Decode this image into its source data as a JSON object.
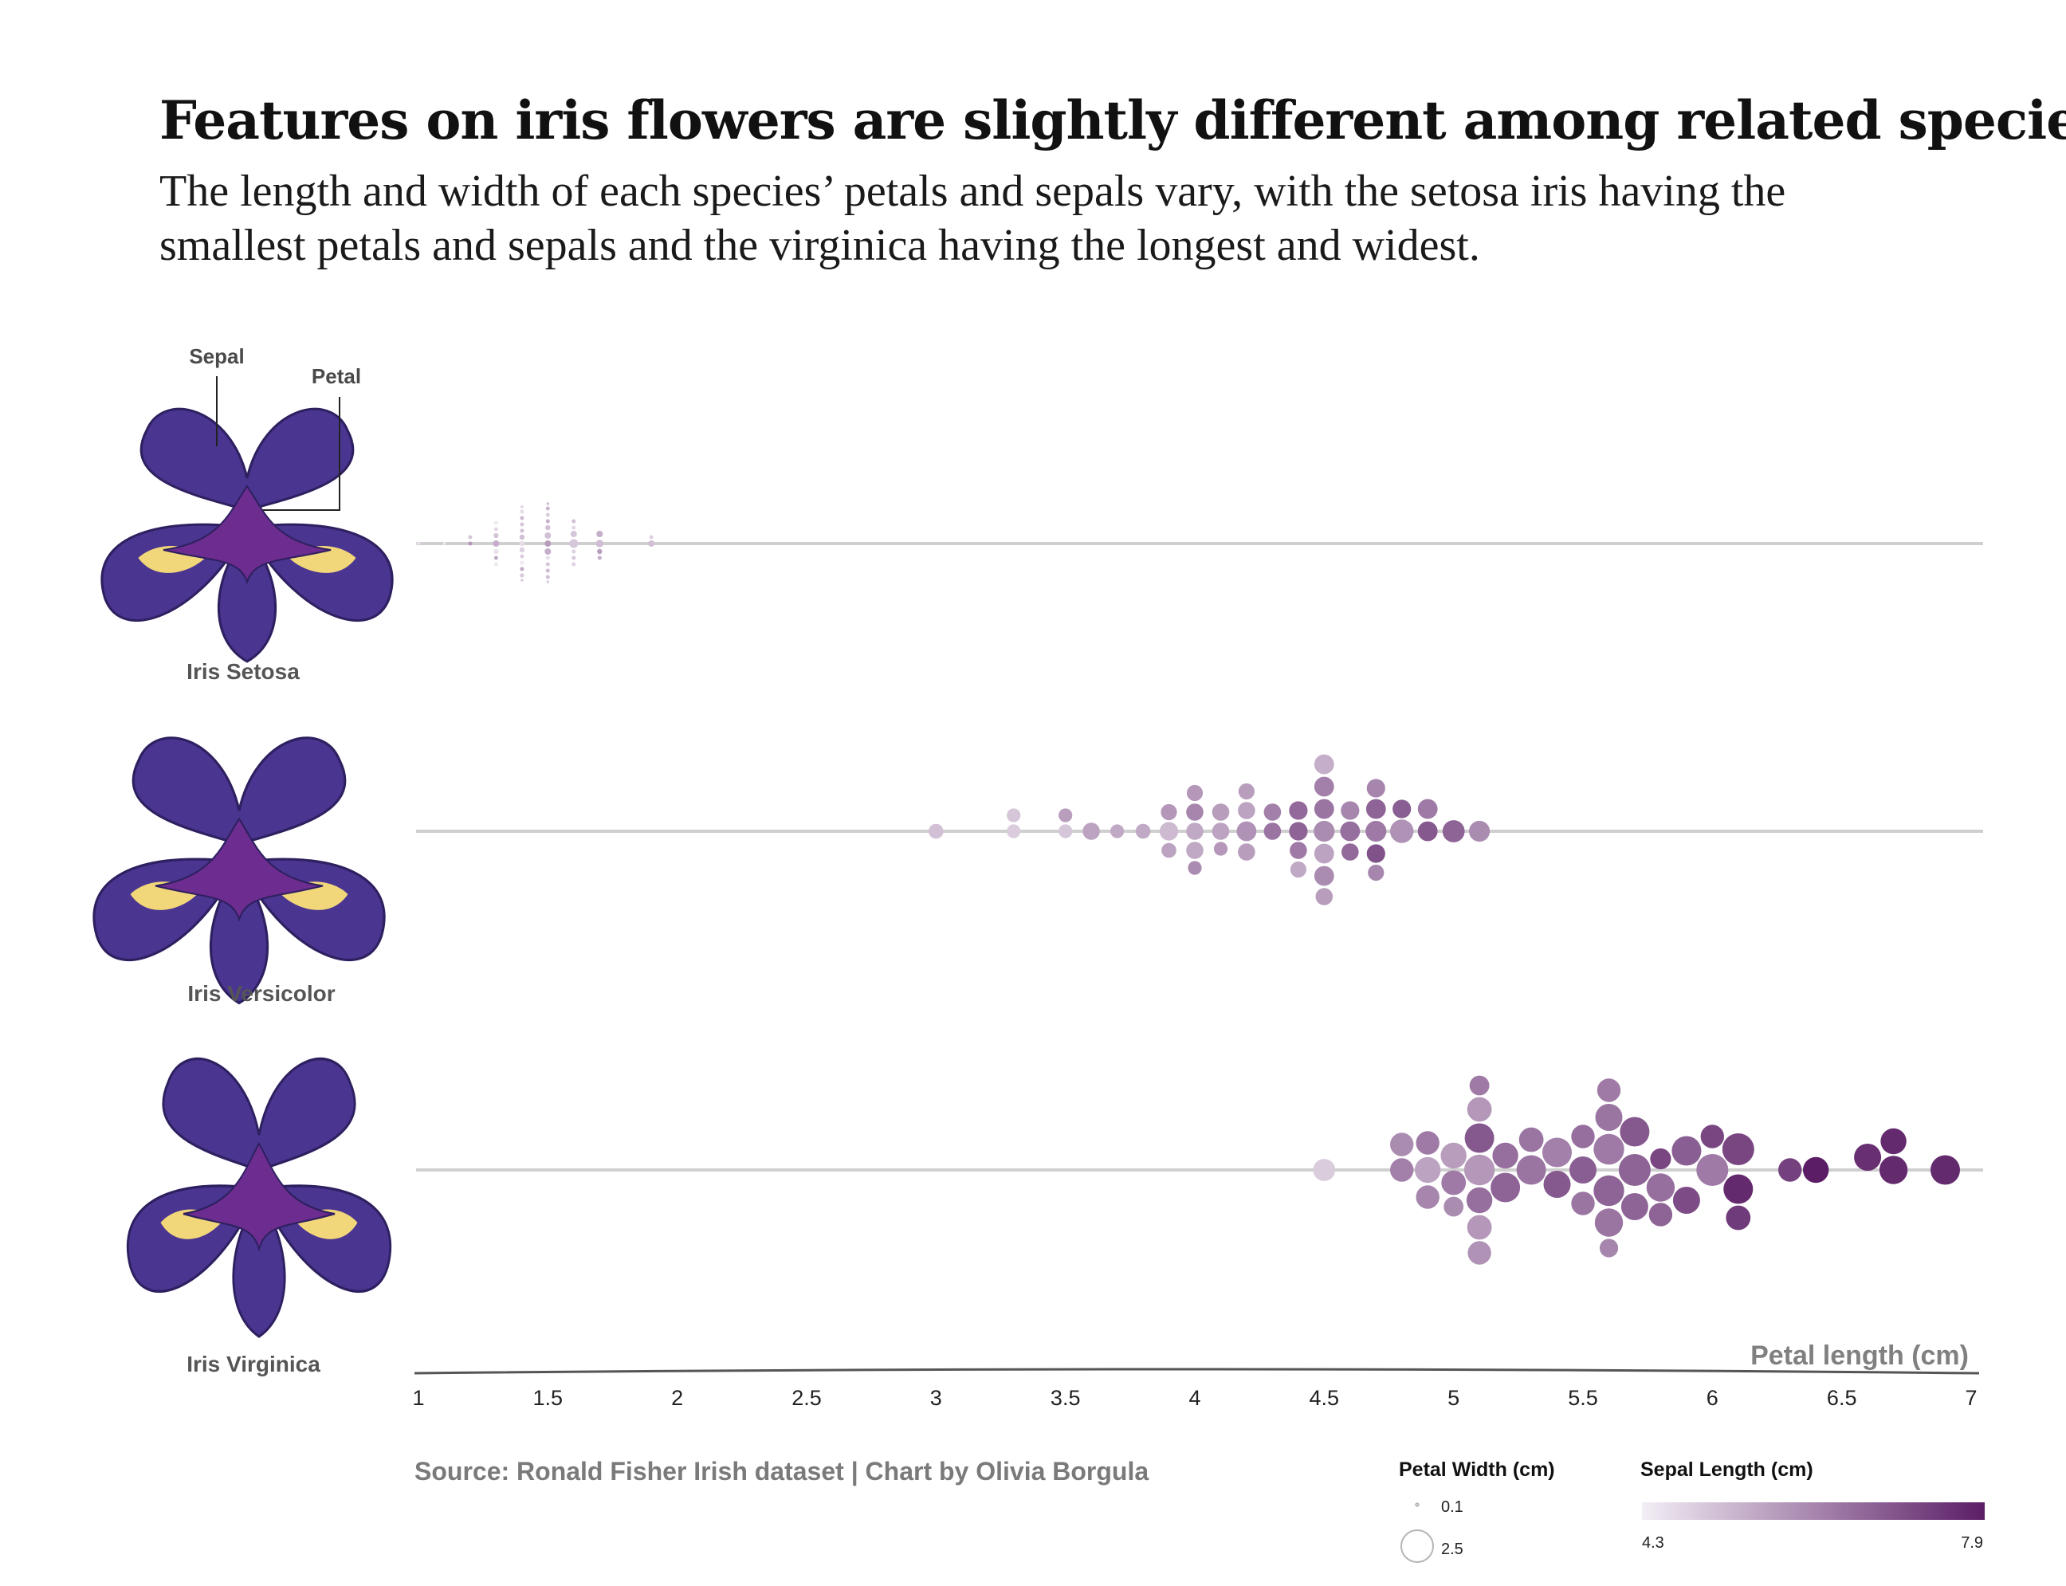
{
  "title": "Features on iris flowers are slightly different among related species",
  "subtitle_lines": [
    "The length and width of each species’ petals and sepals vary, with the setosa iris having the",
    "smallest petals and sepals and the virginica having the longest and widest."
  ],
  "source": "Source: Ronald Fisher Irish dataset | Chart by Olivia Borgula",
  "diagram_labels": {
    "sepal": "Sepal",
    "petal": "Petal"
  },
  "colors": {
    "row_line": "#cfcfcf",
    "axis": "#555555",
    "flower_purple": "#4a3590",
    "flower_dark": "#2e2060",
    "flower_center": "#6d2c8f",
    "flower_yellow": "#f2d67a",
    "scale_low": "#f3eef5",
    "scale_high": "#5b1e66"
  },
  "chart_data": {
    "type": "scatter",
    "subtype": "beeswarm",
    "xlabel": "Petal length (cm)",
    "xlim": [
      1,
      7
    ],
    "x_ticks": [
      "1",
      "1.5",
      "2",
      "2.5",
      "3",
      "3.5",
      "4",
      "4.5",
      "5",
      "5.5",
      "6",
      "6.5",
      "7"
    ],
    "size_encoding": "Petal Width (cm)",
    "color_encoding": "Sepal Length (cm)",
    "size_legend": {
      "title": "Petal Width (cm)",
      "min_label": "0.1",
      "max_label": "2.5",
      "min": 0.1,
      "max": 2.5
    },
    "color_legend": {
      "title": "Sepal Length (cm)",
      "min_label": "4.3",
      "max_label": "7.9",
      "min": 4.3,
      "max": 7.9
    },
    "series": [
      {
        "name": "Iris Setosa",
        "points": [
          [
            1.4,
            0.2,
            5.1
          ],
          [
            1.4,
            0.2,
            4.9
          ],
          [
            1.3,
            0.2,
            4.7
          ],
          [
            1.5,
            0.2,
            4.6
          ],
          [
            1.4,
            0.2,
            5.0
          ],
          [
            1.7,
            0.4,
            5.4
          ],
          [
            1.4,
            0.3,
            4.6
          ],
          [
            1.5,
            0.2,
            5.0
          ],
          [
            1.4,
            0.2,
            4.4
          ],
          [
            1.5,
            0.1,
            4.9
          ],
          [
            1.5,
            0.2,
            5.4
          ],
          [
            1.6,
            0.2,
            4.8
          ],
          [
            1.4,
            0.1,
            4.8
          ],
          [
            1.1,
            0.1,
            4.3
          ],
          [
            1.2,
            0.2,
            5.8
          ],
          [
            1.5,
            0.4,
            5.7
          ],
          [
            1.3,
            0.4,
            5.4
          ],
          [
            1.4,
            0.3,
            5.1
          ],
          [
            1.7,
            0.3,
            5.7
          ],
          [
            1.5,
            0.3,
            5.1
          ],
          [
            1.7,
            0.2,
            5.4
          ],
          [
            1.5,
            0.4,
            5.1
          ],
          [
            1.0,
            0.2,
            4.6
          ],
          [
            1.7,
            0.5,
            5.1
          ],
          [
            1.9,
            0.2,
            4.8
          ],
          [
            1.6,
            0.2,
            5.0
          ],
          [
            1.6,
            0.4,
            5.0
          ],
          [
            1.5,
            0.2,
            5.2
          ],
          [
            1.4,
            0.2,
            5.2
          ],
          [
            1.6,
            0.2,
            4.7
          ],
          [
            1.6,
            0.2,
            4.8
          ],
          [
            1.5,
            0.4,
            5.4
          ],
          [
            1.5,
            0.1,
            5.2
          ],
          [
            1.4,
            0.2,
            5.5
          ],
          [
            1.5,
            0.2,
            4.9
          ],
          [
            1.2,
            0.2,
            5.0
          ],
          [
            1.3,
            0.2,
            5.5
          ],
          [
            1.4,
            0.1,
            4.9
          ],
          [
            1.3,
            0.2,
            4.4
          ],
          [
            1.5,
            0.2,
            5.1
          ],
          [
            1.3,
            0.3,
            5.0
          ],
          [
            1.3,
            0.3,
            4.5
          ],
          [
            1.3,
            0.2,
            4.4
          ],
          [
            1.6,
            0.6,
            5.0
          ],
          [
            1.9,
            0.4,
            5.1
          ],
          [
            1.4,
            0.3,
            4.8
          ],
          [
            1.6,
            0.2,
            5.1
          ],
          [
            1.4,
            0.2,
            4.6
          ],
          [
            1.5,
            0.2,
            5.3
          ],
          [
            1.4,
            0.2,
            5.0
          ]
        ]
      },
      {
        "name": "Iris Versicolor",
        "points": [
          [
            4.7,
            1.4,
            7.0
          ],
          [
            4.5,
            1.5,
            6.4
          ],
          [
            4.9,
            1.5,
            6.9
          ],
          [
            4.0,
            1.3,
            5.5
          ],
          [
            4.6,
            1.5,
            6.5
          ],
          [
            4.5,
            1.3,
            5.7
          ],
          [
            4.7,
            1.6,
            6.3
          ],
          [
            3.3,
            1.0,
            4.9
          ],
          [
            4.6,
            1.3,
            6.6
          ],
          [
            3.9,
            1.4,
            5.2
          ],
          [
            3.5,
            1.0,
            5.0
          ],
          [
            4.2,
            1.5,
            5.9
          ],
          [
            4.0,
            1.0,
            6.0
          ],
          [
            4.7,
            1.4,
            6.1
          ],
          [
            3.6,
            1.3,
            5.6
          ],
          [
            4.4,
            1.4,
            6.7
          ],
          [
            4.5,
            1.5,
            5.6
          ],
          [
            4.1,
            1.0,
            5.8
          ],
          [
            4.5,
            1.5,
            6.2
          ],
          [
            3.9,
            1.1,
            5.6
          ],
          [
            4.8,
            1.8,
            5.9
          ],
          [
            4.0,
            1.3,
            6.1
          ],
          [
            4.9,
            1.5,
            6.3
          ],
          [
            4.7,
            1.2,
            6.1
          ],
          [
            4.3,
            1.3,
            6.4
          ],
          [
            4.4,
            1.4,
            6.6
          ],
          [
            4.8,
            1.4,
            6.8
          ],
          [
            5.0,
            1.7,
            6.7
          ],
          [
            4.5,
            1.5,
            6.0
          ],
          [
            3.5,
            1.0,
            5.7
          ],
          [
            3.8,
            1.1,
            5.5
          ],
          [
            3.7,
            1.0,
            5.5
          ],
          [
            3.9,
            1.2,
            5.8
          ],
          [
            5.1,
            1.6,
            6.0
          ],
          [
            4.5,
            1.5,
            5.4
          ],
          [
            4.5,
            1.6,
            6.0
          ],
          [
            4.7,
            1.5,
            6.7
          ],
          [
            4.4,
            1.3,
            6.3
          ],
          [
            4.1,
            1.3,
            5.6
          ],
          [
            4.0,
            1.3,
            5.5
          ],
          [
            4.4,
            1.2,
            5.5
          ],
          [
            4.6,
            1.4,
            6.1
          ],
          [
            4.0,
            1.2,
            5.8
          ],
          [
            3.3,
            1.0,
            5.0
          ],
          [
            4.2,
            1.3,
            5.6
          ],
          [
            4.2,
            1.2,
            5.7
          ],
          [
            4.2,
            1.3,
            5.7
          ],
          [
            4.3,
            1.3,
            6.2
          ],
          [
            3.0,
            1.1,
            5.1
          ],
          [
            4.1,
            1.3,
            5.7
          ]
        ]
      },
      {
        "name": "Iris Virginica",
        "points": [
          [
            6.0,
            2.5,
            6.3
          ],
          [
            5.1,
            1.9,
            5.8
          ],
          [
            5.9,
            2.1,
            7.1
          ],
          [
            5.6,
            1.8,
            6.3
          ],
          [
            5.8,
            2.2,
            6.5
          ],
          [
            6.6,
            2.1,
            7.6
          ],
          [
            4.5,
            1.7,
            4.9
          ],
          [
            6.3,
            1.8,
            7.3
          ],
          [
            5.8,
            1.8,
            6.7
          ],
          [
            6.1,
            2.5,
            7.2
          ],
          [
            5.1,
            2.0,
            6.5
          ],
          [
            5.3,
            1.9,
            6.4
          ],
          [
            5.5,
            2.1,
            6.8
          ],
          [
            5.0,
            2.0,
            5.7
          ],
          [
            5.1,
            2.4,
            5.8
          ],
          [
            5.3,
            2.3,
            6.4
          ],
          [
            5.5,
            1.8,
            6.5
          ],
          [
            6.7,
            2.2,
            7.7
          ],
          [
            6.9,
            2.3,
            7.7
          ],
          [
            5.0,
            1.5,
            6.0
          ],
          [
            5.7,
            2.3,
            6.9
          ],
          [
            4.9,
            2.0,
            5.6
          ],
          [
            6.7,
            2.0,
            7.7
          ],
          [
            4.9,
            1.8,
            6.3
          ],
          [
            5.7,
            2.1,
            6.7
          ],
          [
            6.0,
            1.8,
            7.2
          ],
          [
            4.8,
            1.8,
            6.2
          ],
          [
            4.9,
            1.8,
            6.1
          ],
          [
            5.6,
            2.1,
            6.4
          ],
          [
            5.8,
            1.6,
            7.2
          ],
          [
            6.1,
            1.9,
            7.4
          ],
          [
            6.4,
            2.0,
            7.9
          ],
          [
            5.6,
            2.2,
            6.4
          ],
          [
            5.1,
            1.5,
            6.3
          ],
          [
            5.6,
            1.4,
            6.1
          ],
          [
            6.1,
            2.3,
            7.7
          ],
          [
            5.6,
            2.4,
            6.3
          ],
          [
            5.5,
            1.8,
            6.4
          ],
          [
            4.8,
            1.8,
            6.0
          ],
          [
            5.4,
            2.1,
            6.9
          ],
          [
            5.6,
            2.4,
            6.7
          ],
          [
            5.1,
            2.3,
            6.9
          ],
          [
            5.1,
            1.9,
            5.8
          ],
          [
            5.9,
            2.3,
            6.8
          ],
          [
            5.7,
            2.5,
            6.7
          ],
          [
            5.2,
            2.3,
            6.7
          ],
          [
            5.0,
            1.9,
            6.3
          ],
          [
            5.2,
            2.0,
            6.5
          ],
          [
            5.4,
            2.3,
            6.2
          ],
          [
            5.1,
            1.8,
            5.9
          ]
        ]
      }
    ]
  }
}
